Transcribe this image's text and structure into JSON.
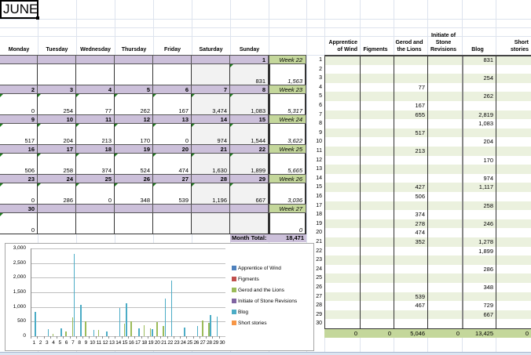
{
  "sheet": {
    "title": "JUNE"
  },
  "calendar": {
    "day_headers": [
      "Monday",
      "Tuesday",
      "Wednesday",
      "Thursday",
      "Friday",
      "Saturday",
      "Sunday"
    ],
    "weeks": [
      {
        "dates": [
          "",
          "",
          "",
          "",
          "",
          "",
          "1"
        ],
        "values": [
          "",
          "",
          "",
          "",
          "",
          "",
          "831"
        ],
        "week_label": "Week 22",
        "week_total": "1,563"
      },
      {
        "dates": [
          "2",
          "3",
          "4",
          "5",
          "6",
          "7",
          "8"
        ],
        "values": [
          "0",
          "254",
          "77",
          "262",
          "167",
          "3,474",
          "1,083"
        ],
        "week_label": "Week 23",
        "week_total": "5,317"
      },
      {
        "dates": [
          "9",
          "10",
          "11",
          "12",
          "13",
          "14",
          "15"
        ],
        "values": [
          "517",
          "204",
          "213",
          "170",
          "0",
          "974",
          "1,544"
        ],
        "week_label": "Week 24",
        "week_total": "3,622"
      },
      {
        "dates": [
          "16",
          "17",
          "18",
          "19",
          "20",
          "21",
          "22"
        ],
        "values": [
          "506",
          "258",
          "374",
          "524",
          "474",
          "1,630",
          "1,899"
        ],
        "week_label": "Week 25",
        "week_total": "5,665"
      },
      {
        "dates": [
          "23",
          "24",
          "25",
          "26",
          "27",
          "28",
          "29"
        ],
        "values": [
          "0",
          "286",
          "0",
          "348",
          "539",
          "1,196",
          "667"
        ],
        "week_label": "Week 26",
        "week_total": "3,036"
      },
      {
        "dates": [
          "30",
          "",
          "",
          "",
          "",
          "",
          ""
        ],
        "values": [
          "0",
          "",
          "",
          "",
          "",
          "",
          ""
        ],
        "week_label": "Week 27",
        "week_total": "0"
      }
    ],
    "month_total_label": "Month Total:",
    "month_total": "18,471"
  },
  "projects_table": {
    "headers": [
      "Apprentice of Wind",
      "Figments",
      "Gerod and the Lions",
      "Initiate of Stone Revisions",
      "Blog",
      "Short stories"
    ],
    "rows": [
      {
        "day": "1",
        "values": [
          "",
          "",
          "",
          "",
          "831",
          ""
        ]
      },
      {
        "day": "2",
        "values": [
          "",
          "",
          "",
          "",
          "",
          ""
        ]
      },
      {
        "day": "3",
        "values": [
          "",
          "",
          "",
          "",
          "254",
          ""
        ]
      },
      {
        "day": "4",
        "values": [
          "",
          "",
          "77",
          "",
          "",
          ""
        ]
      },
      {
        "day": "5",
        "values": [
          "",
          "",
          "",
          "",
          "262",
          ""
        ]
      },
      {
        "day": "6",
        "values": [
          "",
          "",
          "167",
          "",
          "",
          ""
        ]
      },
      {
        "day": "7",
        "values": [
          "",
          "",
          "655",
          "",
          "2,819",
          ""
        ]
      },
      {
        "day": "8",
        "values": [
          "",
          "",
          "",
          "",
          "1,083",
          ""
        ]
      },
      {
        "day": "9",
        "values": [
          "",
          "",
          "517",
          "",
          "",
          ""
        ]
      },
      {
        "day": "10",
        "values": [
          "",
          "",
          "",
          "",
          "204",
          ""
        ]
      },
      {
        "day": "11",
        "values": [
          "",
          "",
          "213",
          "",
          "",
          ""
        ]
      },
      {
        "day": "12",
        "values": [
          "",
          "",
          "",
          "",
          "170",
          ""
        ]
      },
      {
        "day": "13",
        "values": [
          "",
          "",
          "",
          "",
          "",
          ""
        ]
      },
      {
        "day": "14",
        "values": [
          "",
          "",
          "",
          "",
          "974",
          ""
        ]
      },
      {
        "day": "15",
        "values": [
          "",
          "",
          "427",
          "",
          "1,117",
          ""
        ]
      },
      {
        "day": "16",
        "values": [
          "",
          "",
          "506",
          "",
          "",
          ""
        ]
      },
      {
        "day": "17",
        "values": [
          "",
          "",
          "",
          "",
          "258",
          ""
        ]
      },
      {
        "day": "18",
        "values": [
          "",
          "",
          "374",
          "",
          "",
          ""
        ]
      },
      {
        "day": "19",
        "values": [
          "",
          "",
          "278",
          "",
          "246",
          ""
        ]
      },
      {
        "day": "20",
        "values": [
          "",
          "",
          "474",
          "",
          "",
          ""
        ]
      },
      {
        "day": "21",
        "values": [
          "",
          "",
          "352",
          "",
          "1,278",
          ""
        ]
      },
      {
        "day": "22",
        "values": [
          "",
          "",
          "",
          "",
          "1,899",
          ""
        ]
      },
      {
        "day": "23",
        "values": [
          "",
          "",
          "",
          "",
          "",
          ""
        ]
      },
      {
        "day": "24",
        "values": [
          "",
          "",
          "",
          "",
          "286",
          ""
        ]
      },
      {
        "day": "25",
        "values": [
          "",
          "",
          "",
          "",
          "",
          ""
        ]
      },
      {
        "day": "26",
        "values": [
          "",
          "",
          "",
          "",
          "348",
          ""
        ]
      },
      {
        "day": "27",
        "values": [
          "",
          "",
          "539",
          "",
          "",
          ""
        ]
      },
      {
        "day": "28",
        "values": [
          "",
          "",
          "467",
          "",
          "729",
          ""
        ]
      },
      {
        "day": "29",
        "values": [
          "",
          "",
          "",
          "",
          "667",
          ""
        ]
      },
      {
        "day": "30",
        "values": [
          "",
          "",
          "",
          "",
          "",
          ""
        ]
      }
    ],
    "totals": [
      "0",
      "0",
      "5,046",
      "0",
      "13,425",
      "0"
    ]
  },
  "chart_data": {
    "type": "bar",
    "title": "",
    "xlabel": "",
    "ylabel": "",
    "ylim": [
      0,
      3000
    ],
    "yticks": [
      "0",
      "500",
      "1,000",
      "1,500",
      "2,000",
      "2,500",
      "3,000"
    ],
    "grid": true,
    "legend_position": "right",
    "categories": [
      "1",
      "2",
      "3",
      "4",
      "5",
      "6",
      "7",
      "8",
      "9",
      "10",
      "11",
      "12",
      "13",
      "14",
      "15",
      "16",
      "17",
      "18",
      "19",
      "20",
      "21",
      "22",
      "23",
      "24",
      "25",
      "26",
      "27",
      "28",
      "29",
      "30"
    ],
    "series": [
      {
        "name": "Apprentice of Wind",
        "color": "#4f81bd",
        "values": [
          0,
          0,
          0,
          0,
          0,
          0,
          0,
          0,
          0,
          0,
          0,
          0,
          0,
          0,
          0,
          0,
          0,
          0,
          0,
          0,
          0,
          0,
          0,
          0,
          0,
          0,
          0,
          0,
          0,
          0
        ]
      },
      {
        "name": "Figments",
        "color": "#c0504d",
        "values": [
          0,
          0,
          0,
          0,
          0,
          0,
          0,
          0,
          0,
          0,
          0,
          0,
          0,
          0,
          0,
          0,
          0,
          0,
          0,
          0,
          0,
          0,
          0,
          0,
          0,
          0,
          0,
          0,
          0,
          0
        ]
      },
      {
        "name": "Gerod and the Lions",
        "color": "#9bbb59",
        "values": [
          0,
          0,
          0,
          77,
          0,
          167,
          655,
          0,
          517,
          0,
          213,
          0,
          0,
          0,
          427,
          506,
          0,
          374,
          278,
          474,
          352,
          0,
          0,
          0,
          0,
          0,
          539,
          467,
          0,
          0
        ]
      },
      {
        "name": "Initiate of Stone Revisions",
        "color": "#8064a2",
        "values": [
          0,
          0,
          0,
          0,
          0,
          0,
          0,
          0,
          0,
          0,
          0,
          0,
          0,
          0,
          0,
          0,
          0,
          0,
          0,
          0,
          0,
          0,
          0,
          0,
          0,
          0,
          0,
          0,
          0,
          0
        ]
      },
      {
        "name": "Blog",
        "color": "#4bacc6",
        "values": [
          831,
          0,
          254,
          0,
          262,
          0,
          2819,
          1083,
          0,
          204,
          0,
          170,
          0,
          974,
          1117,
          0,
          258,
          0,
          246,
          0,
          1278,
          1899,
          0,
          286,
          0,
          348,
          0,
          729,
          667,
          0
        ]
      },
      {
        "name": "Short stories",
        "color": "#f79646",
        "values": [
          0,
          0,
          0,
          0,
          0,
          0,
          0,
          0,
          0,
          0,
          0,
          0,
          0,
          0,
          0,
          0,
          0,
          0,
          0,
          0,
          0,
          0,
          0,
          0,
          0,
          0,
          0,
          0,
          0,
          0
        ]
      }
    ]
  }
}
